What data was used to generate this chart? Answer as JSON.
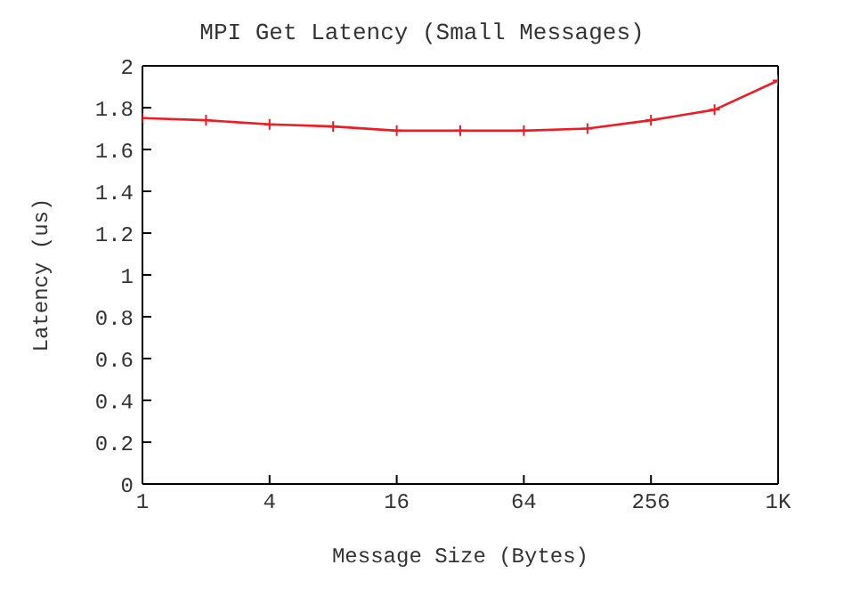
{
  "chart_data": {
    "type": "line",
    "title": "MPI Get Latency (Small Messages)",
    "xlabel": "Message Size (Bytes)",
    "ylabel": "Latency (us)",
    "x": [
      1,
      2,
      4,
      8,
      16,
      32,
      64,
      128,
      256,
      512,
      1024
    ],
    "series": [
      {
        "color": "#ee1c24",
        "values": [
          1.75,
          1.74,
          1.72,
          1.71,
          1.69,
          1.69,
          1.69,
          1.7,
          1.74,
          1.79,
          1.93
        ]
      }
    ],
    "log": "x",
    "xlim": [
      1,
      1024
    ],
    "xticks": [
      1,
      4,
      16,
      64,
      256,
      {
        "value": 1024,
        "label": "1K"
      }
    ],
    "ylim": [
      0,
      2
    ],
    "yticks": [
      0,
      0.2,
      0.4,
      0.6,
      0.8,
      1,
      1.2,
      1.4,
      1.6,
      1.8,
      2
    ],
    "marker": "cross",
    "line_style": "solid",
    "grid": false
  }
}
